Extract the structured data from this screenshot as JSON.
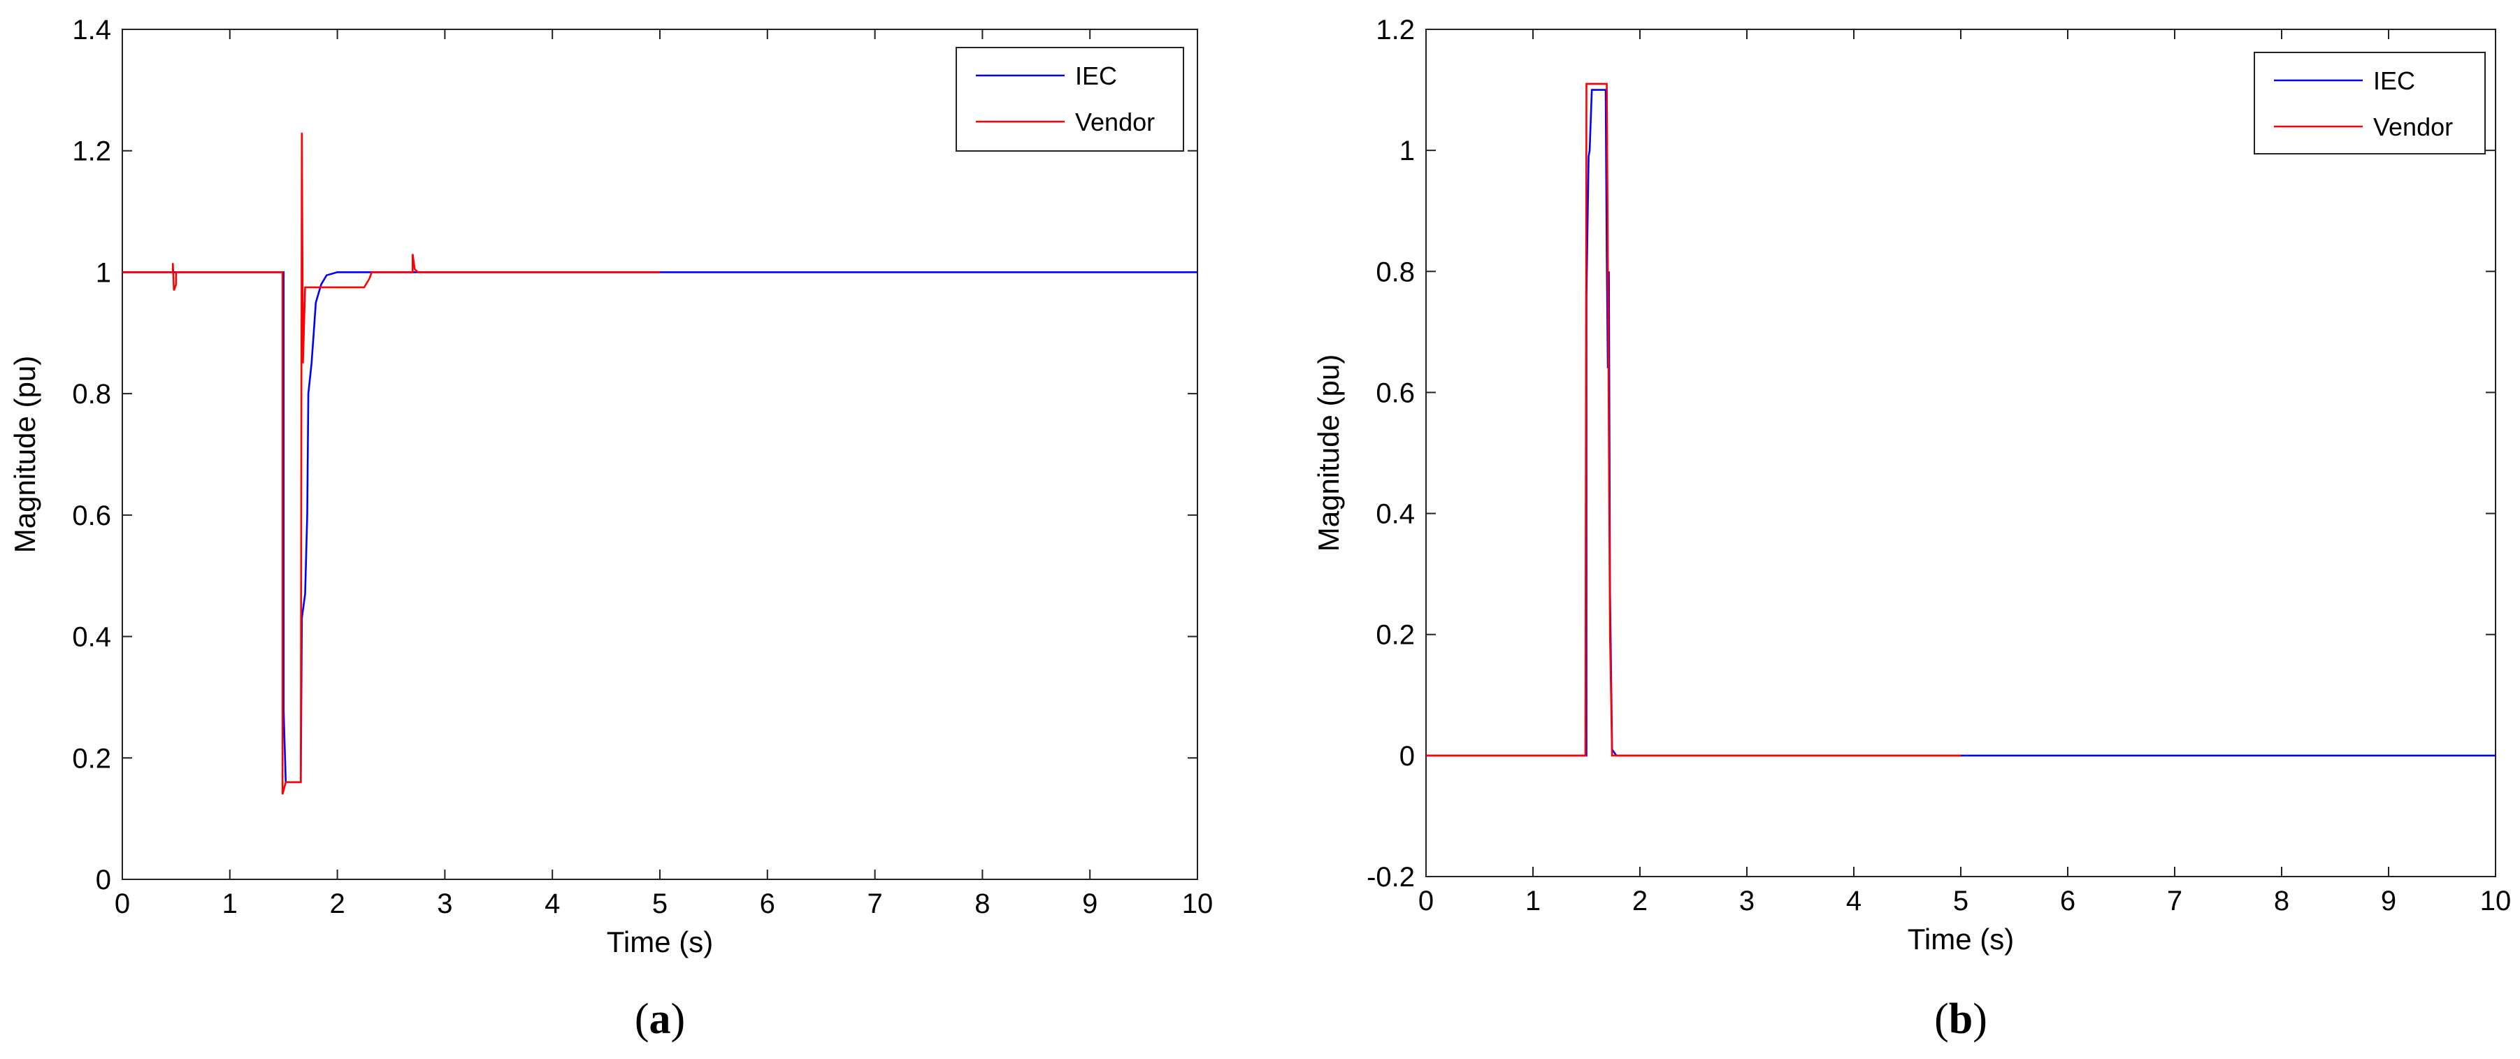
{
  "chart_data": [
    {
      "type": "line",
      "caption": "(a)",
      "caption_letter": "a",
      "xlabel": "Time (s)",
      "ylabel": "Magnitude (pu)",
      "xlim": [
        0,
        10
      ],
      "ylim": [
        0,
        1.4
      ],
      "xticks": [
        0,
        1,
        2,
        3,
        4,
        5,
        6,
        7,
        8,
        9,
        10
      ],
      "yticks": [
        0,
        0.2,
        0.4,
        0.6,
        0.8,
        1,
        1.2,
        1.4
      ],
      "legend": "top-right",
      "grid": false,
      "series": [
        {
          "name": "IEC",
          "color": "#0000ff",
          "points": [
            [
              0,
              1
            ],
            [
              1.5,
              1
            ],
            [
              1.5,
              0.28
            ],
            [
              1.52,
              0.16
            ],
            [
              1.66,
              0.16
            ],
            [
              1.67,
              0.43
            ],
            [
              1.7,
              0.47
            ],
            [
              1.72,
              0.6
            ],
            [
              1.73,
              0.8
            ],
            [
              1.76,
              0.85
            ],
            [
              1.78,
              0.9
            ],
            [
              1.8,
              0.95
            ],
            [
              1.85,
              0.98
            ],
            [
              1.9,
              0.995
            ],
            [
              2.0,
              1
            ],
            [
              10,
              1
            ]
          ]
        },
        {
          "name": "Vendor",
          "color": "#ff0000",
          "points": [
            [
              0,
              1
            ],
            [
              0.47,
              1
            ],
            [
              0.47,
              1.015
            ],
            [
              0.48,
              0.97
            ],
            [
              0.5,
              0.98
            ],
            [
              0.5,
              1
            ],
            [
              1.49,
              1
            ],
            [
              1.49,
              0.14
            ],
            [
              1.52,
              0.16
            ],
            [
              1.66,
              0.16
            ],
            [
              1.67,
              1.23
            ],
            [
              1.68,
              0.85
            ],
            [
              1.7,
              0.975
            ],
            [
              2.25,
              0.975
            ],
            [
              2.3,
              0.99
            ],
            [
              2.32,
              1
            ],
            [
              2.7,
              1
            ],
            [
              2.7,
              1.03
            ],
            [
              2.72,
              1.005
            ],
            [
              2.75,
              1
            ],
            [
              5.0,
              1
            ]
          ]
        }
      ]
    },
    {
      "type": "line",
      "caption": "(b)",
      "caption_letter": "b",
      "xlabel": "Time (s)",
      "ylabel": "Magnitude (pu)",
      "xlim": [
        0,
        10
      ],
      "ylim": [
        -0.2,
        1.2
      ],
      "xticks": [
        0,
        1,
        2,
        3,
        4,
        5,
        6,
        7,
        8,
        9,
        10
      ],
      "yticks": [
        -0.2,
        0,
        0.2,
        0.4,
        0.6,
        0.8,
        1,
        1.2
      ],
      "legend": "top-right",
      "grid": false,
      "series": [
        {
          "name": "IEC",
          "color": "#0000ff",
          "points": [
            [
              0,
              0
            ],
            [
              1.5,
              0
            ],
            [
              1.5,
              0.76
            ],
            [
              1.52,
              0.99
            ],
            [
              1.53,
              1.0
            ],
            [
              1.55,
              1.1
            ],
            [
              1.68,
              1.1
            ],
            [
              1.69,
              0.82
            ],
            [
              1.7,
              0.64
            ],
            [
              1.71,
              0.8
            ],
            [
              1.72,
              0.27
            ],
            [
              1.74,
              0.01
            ],
            [
              1.78,
              0
            ],
            [
              10,
              0
            ]
          ]
        },
        {
          "name": "Vendor",
          "color": "#ff0000",
          "points": [
            [
              0,
              0
            ],
            [
              1.49,
              0
            ],
            [
              1.5,
              1.11
            ],
            [
              1.69,
              1.11
            ],
            [
              1.7,
              0.82
            ],
            [
              1.72,
              0.2
            ],
            [
              1.74,
              0
            ],
            [
              5.0,
              0
            ]
          ]
        }
      ]
    }
  ]
}
